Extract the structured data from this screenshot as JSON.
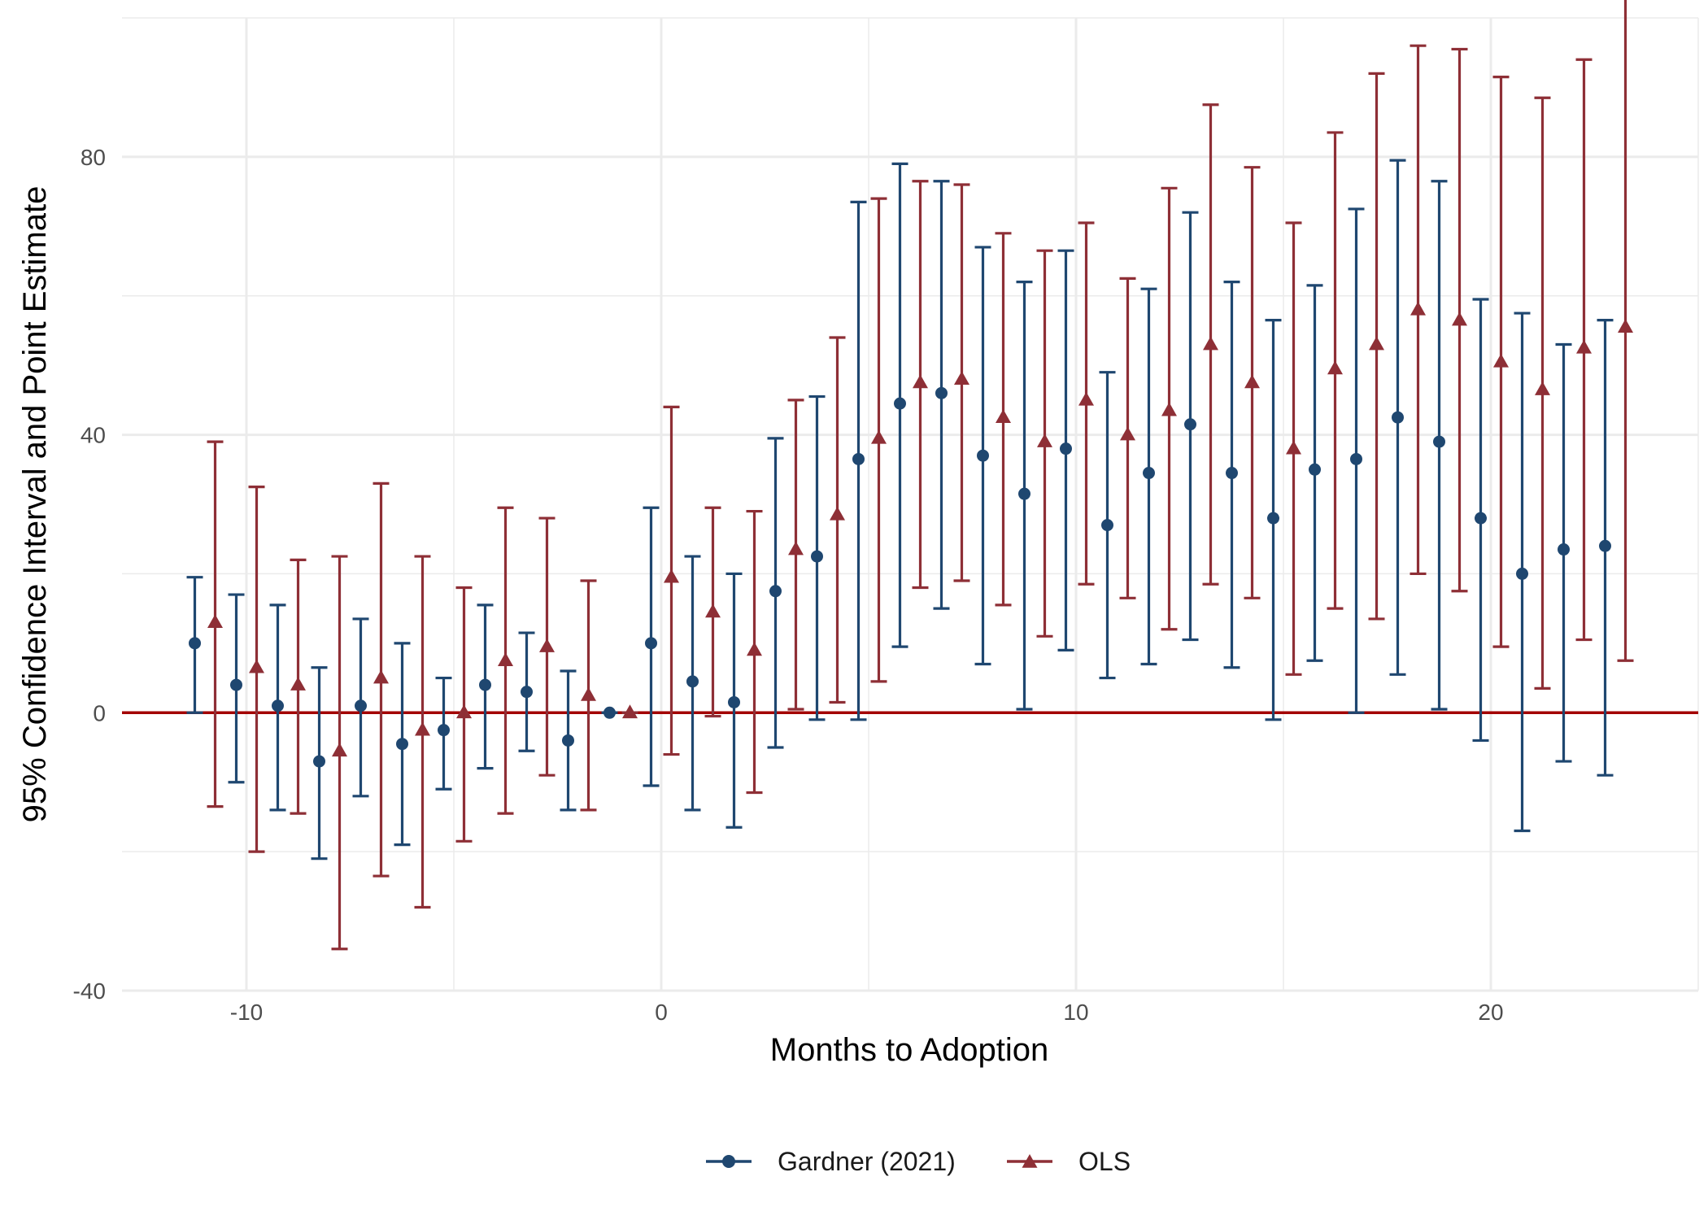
{
  "colors": {
    "gardner": "#1F4770",
    "ols": "#8E2F36",
    "zero_line": "#A30000",
    "grid": "#EBEBEB"
  },
  "chart_data": {
    "type": "scatter",
    "title": "",
    "xlabel": "Months to Adoption",
    "ylabel": "95% Confidence Interval and Point Estimate",
    "xlim": [
      -13,
      25
    ],
    "ylim": [
      -40,
      100
    ],
    "xticks": [
      -10,
      0,
      10,
      20
    ],
    "yticks": [
      -40,
      0,
      40,
      80
    ],
    "x_tick_labels": [
      "-10",
      "0",
      "10",
      "20"
    ],
    "y_tick_labels": [
      "-40",
      "0",
      "40",
      "80"
    ],
    "hline": 0,
    "grid": true,
    "legend_position": "bottom",
    "legend": [
      "Gardner (2021)",
      "OLS"
    ],
    "series": [
      {
        "name": "Gardner (2021)",
        "marker": "circle",
        "x": [
          -11,
          -10,
          -9,
          -8,
          -7,
          -6,
          -5,
          -4,
          -3,
          -2,
          -1,
          0,
          1,
          2,
          3,
          4,
          5,
          6,
          7,
          8,
          9,
          10,
          11,
          12,
          13,
          14,
          15,
          16,
          17,
          18,
          19,
          20,
          21,
          22,
          23
        ],
        "y": [
          10,
          4,
          1,
          -7,
          1,
          -4.5,
          -2.5,
          4,
          3,
          -4,
          0,
          10,
          4.5,
          1.5,
          17.5,
          22.5,
          36.5,
          44.5,
          46,
          37,
          31.5,
          38,
          27,
          34.5,
          41.5,
          34.5,
          28,
          35,
          36.5,
          42.5,
          39,
          28,
          20,
          23.5,
          24
        ],
        "lower": [
          0,
          -10,
          -14,
          -21,
          -12,
          -19,
          -11,
          -8,
          -5.5,
          -14,
          0,
          -10.5,
          -14,
          -16.5,
          -5,
          -1,
          -1,
          9.5,
          15,
          7,
          0.5,
          9,
          5,
          7,
          10.5,
          6.5,
          -1,
          7.5,
          0,
          5.5,
          0.5,
          -4,
          -17,
          -7,
          -9
        ],
        "upper": [
          19.5,
          17,
          15.5,
          6.5,
          13.5,
          10,
          5,
          15.5,
          11.5,
          6,
          0,
          29.5,
          22.5,
          20,
          39.5,
          45.5,
          73.5,
          79,
          76.5,
          67,
          62,
          66.5,
          49,
          61,
          72,
          62,
          56.5,
          61.5,
          72.5,
          79.5,
          76.5,
          59.5,
          57.5,
          53,
          56.5
        ]
      },
      {
        "name": "OLS",
        "marker": "triangle",
        "x": [
          -11,
          -10,
          -9,
          -8,
          -7,
          -6,
          -5,
          -4,
          -3,
          -2,
          -1,
          0,
          1,
          2,
          3,
          4,
          5,
          6,
          7,
          8,
          9,
          10,
          11,
          12,
          13,
          14,
          15,
          16,
          17,
          18,
          19,
          20,
          21,
          22,
          23
        ],
        "y": [
          13,
          6.5,
          4,
          -5.5,
          5,
          -2.5,
          0,
          7.5,
          9.5,
          2.5,
          0,
          19.5,
          14.5,
          9,
          23.5,
          28.5,
          39.5,
          47.5,
          48,
          42.5,
          39,
          45,
          40,
          43.5,
          53,
          47.5,
          38,
          49.5,
          53,
          58,
          56.5,
          50.5,
          46.5,
          52.5,
          55.5
        ],
        "lower": [
          -13.5,
          -20,
          -14.5,
          -34,
          -23.5,
          -28,
          -18.5,
          -14.5,
          -9,
          -14,
          0,
          -6,
          -0.5,
          -11.5,
          0.5,
          1.5,
          4.5,
          18,
          19,
          15.5,
          11,
          18.5,
          16.5,
          12,
          18.5,
          16.5,
          5.5,
          15,
          13.5,
          20,
          17.5,
          9.5,
          3.5,
          10.5,
          7.5
        ],
        "upper": [
          39,
          32.5,
          22,
          22.5,
          33,
          22.5,
          18,
          29.5,
          28,
          19,
          0,
          44,
          29.5,
          29,
          45,
          54,
          74,
          76.5,
          76,
          69,
          66.5,
          70.5,
          62.5,
          75.5,
          87.5,
          78.5,
          70.5,
          83.5,
          92,
          96,
          95.5,
          91.5,
          88.5,
          94,
          104
        ]
      }
    ]
  }
}
